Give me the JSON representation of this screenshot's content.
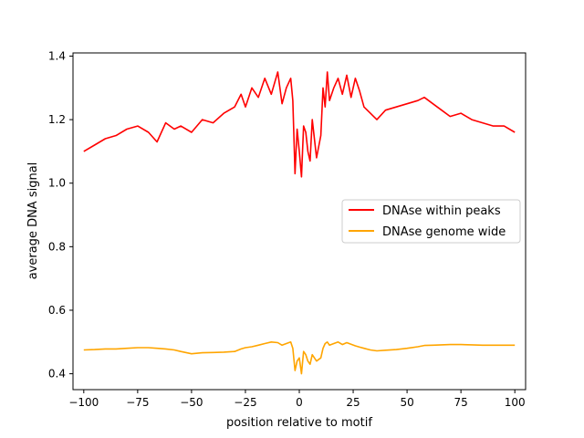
{
  "chart_data": {
    "type": "line",
    "title": "",
    "xlabel": "position relative to motif",
    "ylabel": "average DNA signal",
    "xlim": [
      -105,
      105
    ],
    "ylim": [
      0.35,
      1.41
    ],
    "xticks": [
      -100,
      -75,
      -50,
      -25,
      0,
      25,
      50,
      75,
      100
    ],
    "xtick_labels": [
      "−100",
      "−75",
      "−50",
      "−25",
      "0",
      "25",
      "50",
      "75",
      "100"
    ],
    "yticks": [
      0.4,
      0.6,
      0.8,
      1.0,
      1.2,
      1.4
    ],
    "ytick_labels": [
      "0.4",
      "0.6",
      "0.8",
      "1.0",
      "1.2",
      "1.4"
    ],
    "grid": false,
    "legend_position": "center-right",
    "x": [
      -100,
      -95,
      -90,
      -85,
      -80,
      -75,
      -70,
      -66,
      -62,
      -58,
      -55,
      -50,
      -45,
      -40,
      -35,
      -30,
      -27,
      -25,
      -22,
      -19,
      -16,
      -13,
      -10,
      -8,
      -6,
      -4,
      -3,
      -2,
      -1,
      0,
      1,
      2,
      3,
      4,
      5,
      6,
      8,
      10,
      11,
      12,
      13,
      14,
      16,
      18,
      20,
      22,
      24,
      26,
      28,
      30,
      33,
      36,
      40,
      45,
      50,
      55,
      58,
      62,
      66,
      70,
      75,
      80,
      85,
      90,
      95,
      100
    ],
    "series": [
      {
        "name": "DNAse within peaks",
        "color": "#ff0000",
        "values": [
          1.1,
          1.12,
          1.14,
          1.15,
          1.17,
          1.18,
          1.16,
          1.13,
          1.19,
          1.17,
          1.18,
          1.16,
          1.2,
          1.19,
          1.22,
          1.24,
          1.28,
          1.24,
          1.3,
          1.27,
          1.33,
          1.28,
          1.35,
          1.25,
          1.3,
          1.33,
          1.26,
          1.03,
          1.17,
          1.1,
          1.02,
          1.18,
          1.16,
          1.1,
          1.07,
          1.2,
          1.08,
          1.15,
          1.3,
          1.24,
          1.35,
          1.26,
          1.3,
          1.33,
          1.28,
          1.34,
          1.27,
          1.33,
          1.29,
          1.24,
          1.22,
          1.2,
          1.23,
          1.24,
          1.25,
          1.26,
          1.27,
          1.25,
          1.23,
          1.21,
          1.22,
          1.2,
          1.19,
          1.18,
          1.18,
          1.16
        ]
      },
      {
        "name": "DNAse genome wide",
        "color": "#ffa500",
        "values": [
          0.475,
          0.476,
          0.478,
          0.478,
          0.48,
          0.482,
          0.482,
          0.48,
          0.478,
          0.475,
          0.47,
          0.463,
          0.466,
          0.467,
          0.468,
          0.47,
          0.478,
          0.482,
          0.485,
          0.49,
          0.495,
          0.5,
          0.498,
          0.49,
          0.495,
          0.5,
          0.48,
          0.41,
          0.44,
          0.45,
          0.4,
          0.47,
          0.46,
          0.44,
          0.43,
          0.46,
          0.44,
          0.45,
          0.48,
          0.495,
          0.5,
          0.49,
          0.495,
          0.5,
          0.492,
          0.498,
          0.493,
          0.488,
          0.484,
          0.48,
          0.475,
          0.472,
          0.474,
          0.476,
          0.48,
          0.485,
          0.489,
          0.49,
          0.491,
          0.492,
          0.492,
          0.491,
          0.49,
          0.49,
          0.49,
          0.49
        ]
      }
    ]
  }
}
